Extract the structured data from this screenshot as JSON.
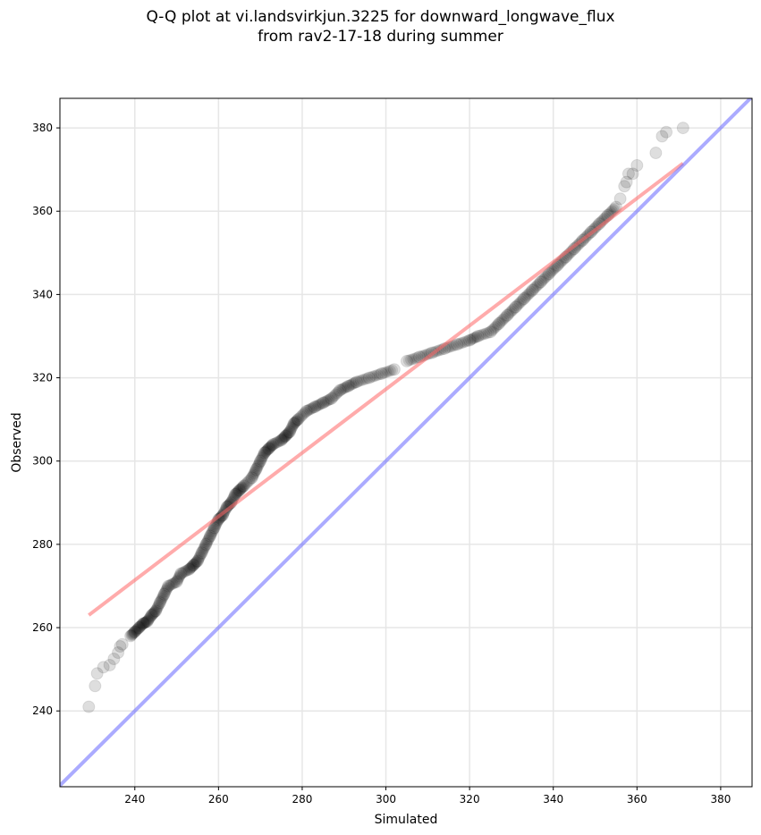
{
  "chart_data": {
    "type": "scatter",
    "title_line1": "Q-Q plot at vi.landsvirkjun.3225 for downward_longwave_flux",
    "title_line2": "from rav2-17-18 during summer",
    "xlabel": "Simulated",
    "ylabel": "Observed",
    "xlim": [
      222.1,
      387.5
    ],
    "ylim": [
      221.8,
      387.1
    ],
    "xticks": [
      240,
      260,
      280,
      300,
      320,
      340,
      360,
      380
    ],
    "yticks": [
      240,
      260,
      280,
      300,
      320,
      340,
      360,
      380
    ],
    "grid": true,
    "colors": {
      "points": "#000000",
      "fit_line": "#ff6666",
      "identity_line": "#6666ff",
      "grid": "#e6e6e6"
    },
    "fit_line": {
      "x": [
        229,
        371
      ],
      "y": [
        263,
        371.5
      ]
    },
    "identity_line": {
      "slope": 1,
      "intercept": 0
    },
    "points": [
      [
        229,
        241
      ],
      [
        230.5,
        246
      ],
      [
        231,
        249
      ],
      [
        232.5,
        250.5
      ],
      [
        234,
        251
      ],
      [
        235,
        252.5
      ],
      [
        236,
        254
      ],
      [
        236.5,
        255.5
      ],
      [
        237,
        256
      ],
      [
        239,
        258
      ],
      [
        240,
        259
      ],
      [
        241,
        260
      ],
      [
        242,
        261
      ],
      [
        243,
        261.5
      ],
      [
        244,
        263
      ],
      [
        245,
        264
      ],
      [
        246,
        266
      ],
      [
        247,
        268
      ],
      [
        248,
        270
      ],
      [
        250,
        271
      ],
      [
        251,
        273
      ],
      [
        253,
        274
      ],
      [
        254,
        275
      ],
      [
        255,
        276
      ],
      [
        256,
        278
      ],
      [
        257,
        280
      ],
      [
        258,
        282
      ],
      [
        259,
        284
      ],
      [
        260,
        286
      ],
      [
        261,
        287
      ],
      [
        262,
        289
      ],
      [
        263,
        290
      ],
      [
        264,
        292
      ],
      [
        265,
        293
      ],
      [
        266,
        294
      ],
      [
        268,
        296
      ],
      [
        269,
        298
      ],
      [
        270,
        300
      ],
      [
        271,
        302
      ],
      [
        272,
        303
      ],
      [
        273,
        304
      ],
      [
        275,
        305
      ],
      [
        276,
        306
      ],
      [
        277,
        307
      ],
      [
        278,
        309
      ],
      [
        279,
        310
      ],
      [
        281,
        312
      ],
      [
        283,
        313
      ],
      [
        285,
        314
      ],
      [
        287,
        315
      ],
      [
        289,
        317
      ],
      [
        291,
        318
      ],
      [
        293,
        319
      ],
      [
        296,
        320
      ],
      [
        299,
        321
      ],
      [
        302,
        322
      ],
      [
        305,
        324
      ],
      [
        308,
        325
      ],
      [
        311,
        326
      ],
      [
        314,
        327
      ],
      [
        317,
        328
      ],
      [
        320,
        329
      ],
      [
        322,
        330
      ],
      [
        325,
        331
      ],
      [
        327,
        333
      ],
      [
        329,
        335
      ],
      [
        331,
        337
      ],
      [
        333,
        339
      ],
      [
        335,
        341
      ],
      [
        337,
        343
      ],
      [
        339,
        345
      ],
      [
        341,
        347
      ],
      [
        343,
        349
      ],
      [
        345,
        351
      ],
      [
        347,
        353
      ],
      [
        349,
        355
      ],
      [
        351,
        357
      ],
      [
        353,
        359
      ],
      [
        355,
        361
      ],
      [
        356,
        363
      ],
      [
        357,
        366
      ],
      [
        357.5,
        367
      ],
      [
        358,
        369
      ],
      [
        359,
        369
      ],
      [
        360,
        371
      ],
      [
        364.5,
        374
      ],
      [
        366,
        378
      ],
      [
        367,
        379
      ],
      [
        371,
        380
      ]
    ]
  }
}
